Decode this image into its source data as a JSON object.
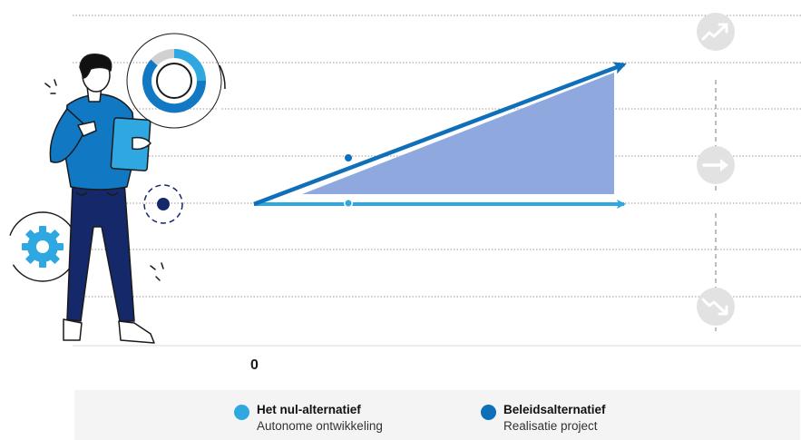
{
  "axis": {
    "zero_label": "0"
  },
  "legend": [
    {
      "title": "Het nul-alternatief",
      "subtitle": "Autonome ontwikkeling",
      "color": "#2fa7e0"
    },
    {
      "title": "Beleidsalternatief",
      "subtitle": "Realisatie project",
      "color": "#0f6fb8"
    }
  ],
  "colors": {
    "baseline": "#2fa7e0",
    "policy": "#0f6fb8",
    "effect_area": "#8fa9de",
    "gridline": "#9a9a9a",
    "trend_icon_bg": "#e2e2e2",
    "trend_icon": "#ffffff",
    "figure_shirt": "#1178c4",
    "figure_pants": "#15286a",
    "figure_hair": "#111111",
    "gear": "#2fa7e0"
  },
  "icons": [
    "trend-up-icon",
    "trend-flat-icon",
    "trend-down-icon",
    "gear-icon",
    "donut-chart-icon",
    "person-illustration"
  ]
}
